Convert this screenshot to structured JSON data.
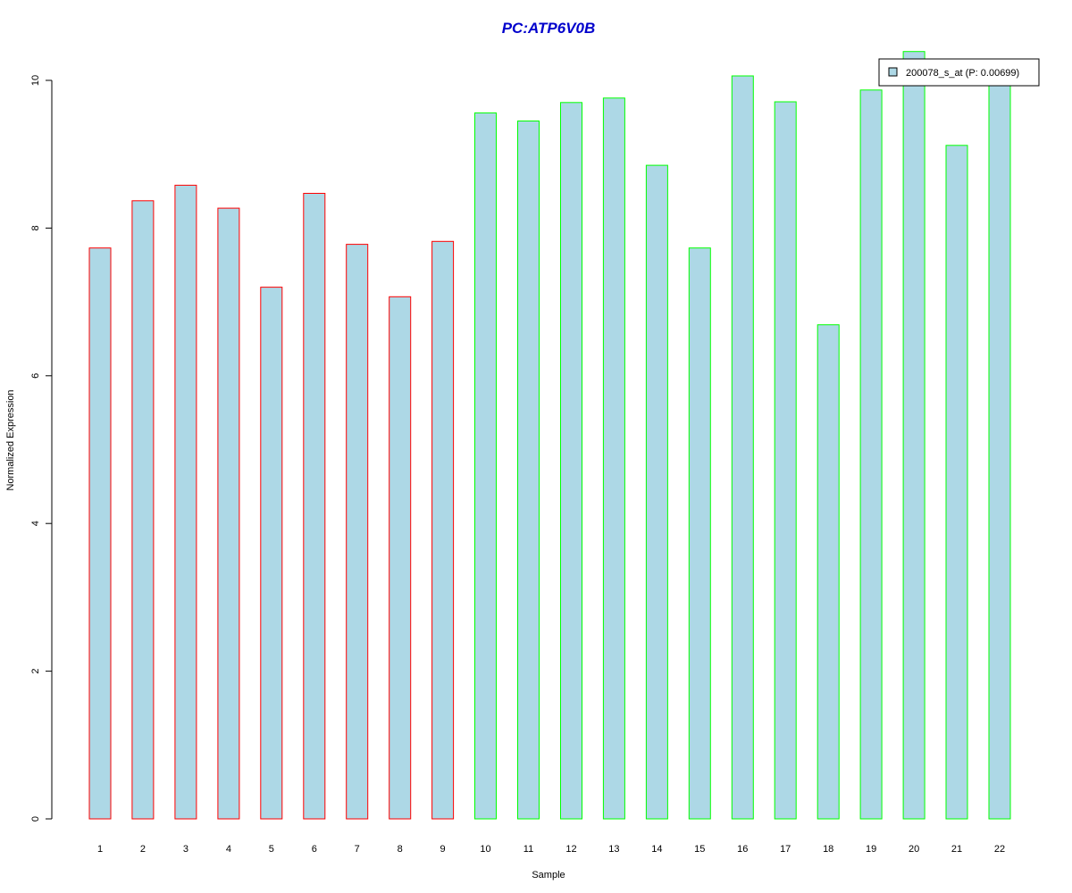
{
  "chart_data": {
    "type": "bar",
    "title": "PC:ATP6V0B",
    "title_color": "#0000CC",
    "xlabel": "Sample",
    "ylabel": "Normalized Expression",
    "ylim": [
      0,
      10
    ],
    "yticks": [
      0,
      2,
      4,
      6,
      8,
      10
    ],
    "categories": [
      "1",
      "2",
      "3",
      "4",
      "5",
      "6",
      "7",
      "8",
      "9",
      "10",
      "11",
      "12",
      "13",
      "14",
      "15",
      "16",
      "17",
      "18",
      "19",
      "20",
      "21",
      "22"
    ],
    "series": [
      {
        "name": "200078_s_at (P: 0.00699)",
        "fill": "#ADD8E6",
        "values": [
          7.73,
          8.37,
          8.58,
          8.27,
          7.2,
          8.47,
          7.78,
          7.07,
          7.82,
          9.56,
          9.45,
          9.7,
          9.76,
          8.85,
          7.73,
          10.06,
          9.71,
          6.69,
          9.87,
          10.39,
          9.12,
          10.2
        ]
      }
    ],
    "groups": [
      {
        "border_color": "#FF0000",
        "samples": [
          "1",
          "2",
          "3",
          "4",
          "5",
          "6",
          "7",
          "8",
          "9"
        ]
      },
      {
        "border_color": "#00FF00",
        "samples": [
          "10",
          "11",
          "12",
          "13",
          "14",
          "15",
          "16",
          "17",
          "18",
          "19",
          "20",
          "21",
          "22"
        ]
      }
    ],
    "legend": {
      "position": "top-right",
      "labels": [
        "200078_s_at (P: 0.00699)"
      ]
    },
    "grid": false
  }
}
